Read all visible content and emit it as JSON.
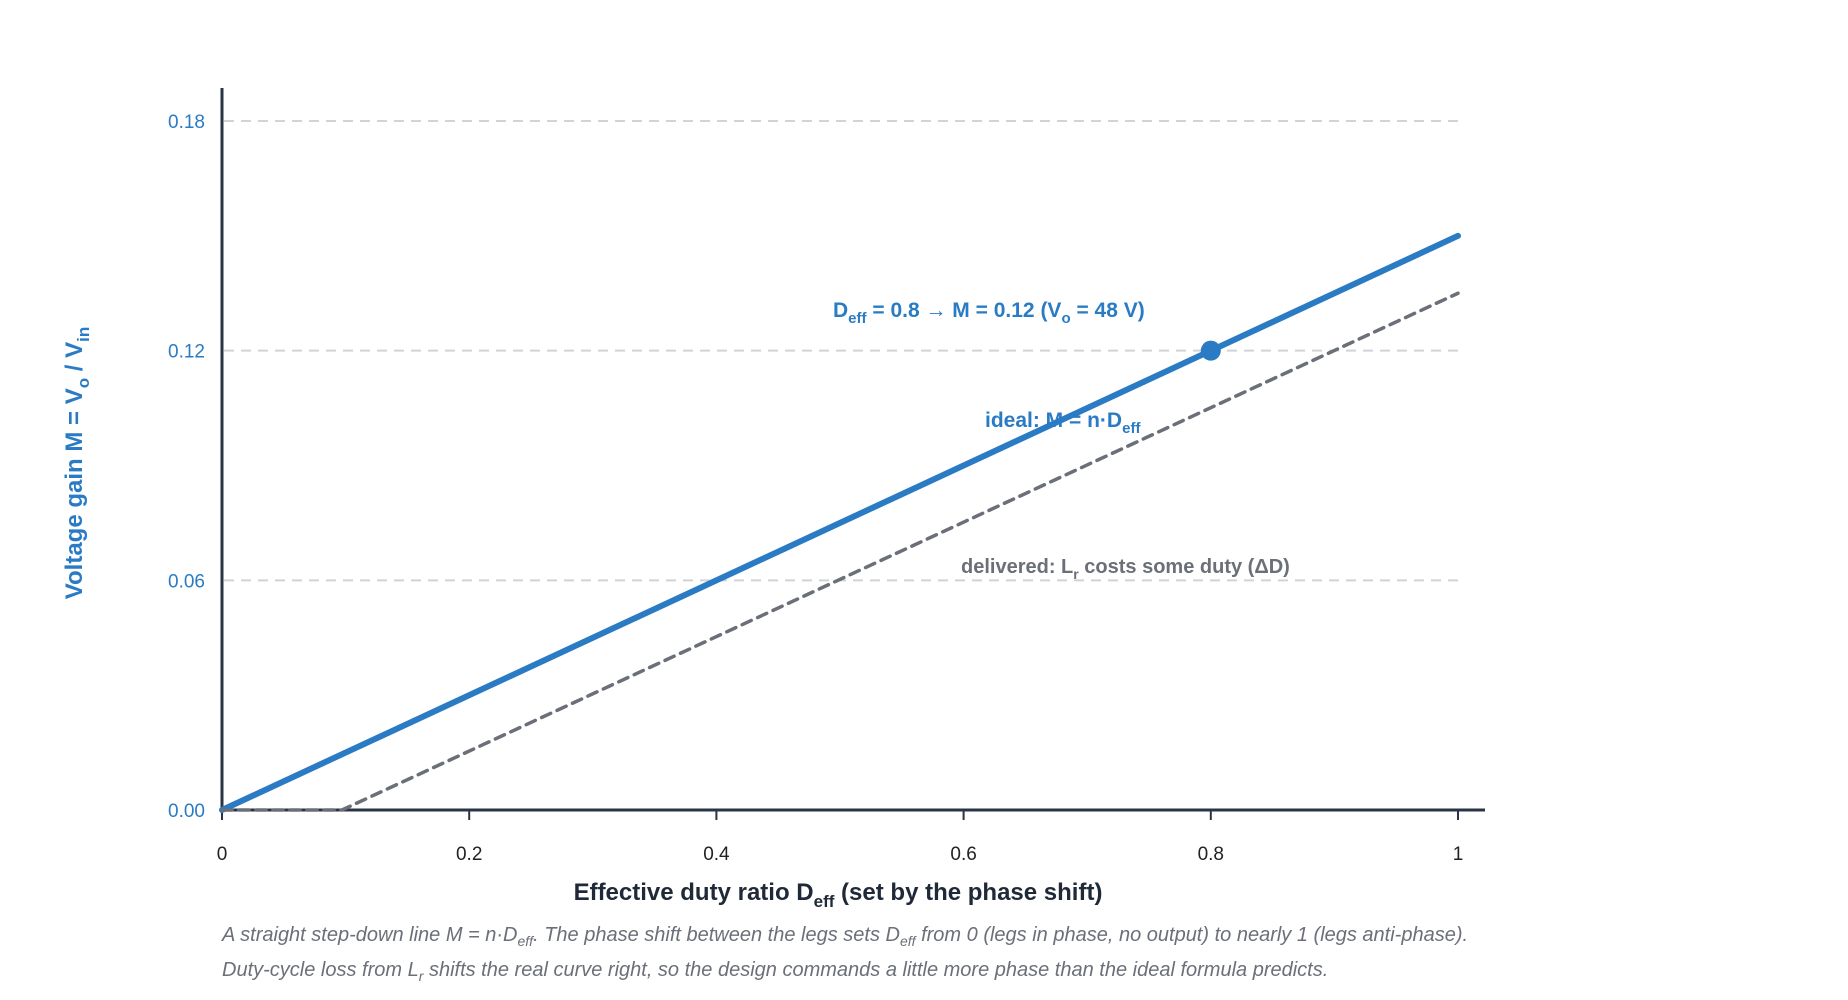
{
  "chart_data": {
    "type": "line",
    "x_ticks": [
      "0",
      "0.2",
      "0.4",
      "0.6",
      "0.8",
      "1"
    ],
    "y_ticks": [
      "0.00",
      "0.06",
      "0.12",
      "0.18"
    ],
    "xlim": [
      0,
      1
    ],
    "ylim": [
      0,
      0.18
    ],
    "grid": "horizontal dashed",
    "xlabel": {
      "main": "Effective duty ratio D",
      "sub": "eff",
      "tail": " (set by the phase shift)"
    },
    "ylabel": {
      "p1": "Voltage gain M = V",
      "s1": "o",
      "p2": " / V",
      "s2": "in"
    },
    "series": [
      {
        "name": "ideal: M = n·Deff",
        "style": "solid",
        "color": "#2a7bc4",
        "x": [
          0,
          1
        ],
        "y": [
          0,
          0.15
        ]
      },
      {
        "name": "delivered: Lr costs some duty (ΔD)",
        "style": "dashed",
        "color": "#6b6f78",
        "x": [
          0,
          0.097,
          1
        ],
        "y": [
          0,
          0,
          0.135
        ]
      }
    ],
    "marker": {
      "x": 0.8,
      "y": 0.12,
      "color": "#2a7bc4"
    },
    "annotations": {
      "operating_point": {
        "p1": "D",
        "s1": "eff",
        "p2": " = 0.8 → M = 0.12 (V",
        "s2": "o",
        "p3": " = 48 V)"
      },
      "ideal": {
        "p1": "ideal: M = n·D",
        "s1": "eff"
      },
      "delivered": {
        "p1": "delivered: L",
        "s1": "r",
        "p2": " costs some duty (ΔD)"
      }
    }
  },
  "caption": {
    "line1_a": "A straight step-down line M = n·D",
    "line1_sub": "eff",
    "line1_b": ". The phase shift between the legs sets D",
    "line1_sub2": "eff",
    "line1_c": " from 0 (legs in phase, no output) to nearly 1 (legs anti-phase).",
    "line2_a": "Duty-cycle loss from L",
    "line2_sub": "r",
    "line2_b": " shifts the real curve right, so the design commands a little more phase than the ideal formula predicts."
  },
  "colors": {
    "accent": "#2a7bc4",
    "muted": "#6b6f78",
    "axis": "#2b3445",
    "grid": "#d0d3d8"
  }
}
